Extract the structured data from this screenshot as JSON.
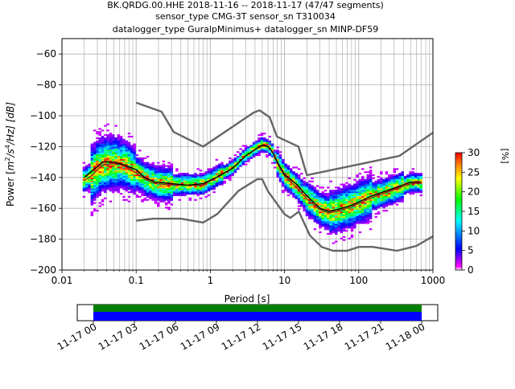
{
  "chart_data": [
    {
      "type": "heatmap",
      "title_lines": [
        "BK.QRDG.00.HHE   2018-11-16 -- 2018-11-17  (47/47 segments)",
        "sensor_type CMG-3T sensor_sn T310034",
        "datalogger_type GuralpMinimus+ datalogger_sn MINP-DF59"
      ],
      "xlabel": "Period [s]",
      "ylabel": "Power [m²/s⁴/Hz] [dB]",
      "ylabel_parts": {
        "pre": "Power [",
        "m": "m",
        "e2": "2",
        "s": "/s",
        "e4": "4",
        "hz": "/Hz] [dB]"
      },
      "xscale": "log",
      "xlim": [
        0.01,
        1000
      ],
      "ylim": [
        -200,
        -50
      ],
      "x_ticks": [
        0.01,
        0.1,
        1,
        10,
        100,
        1000
      ],
      "x_tick_labels": [
        "0.01",
        "0.1",
        "1",
        "10",
        "100",
        "1000"
      ],
      "y_ticks": [
        -60,
        -80,
        -100,
        -120,
        -140,
        -160,
        -180,
        -200
      ],
      "y_tick_labels": [
        "−60",
        "−80",
        "−100",
        "−120",
        "−140",
        "−160",
        "−180",
        "−200"
      ],
      "grid": true,
      "colorbar": {
        "label": "[%]",
        "range": [
          0,
          30
        ],
        "ticks": [
          0,
          5,
          10,
          15,
          20,
          25,
          30
        ],
        "tick_labels": [
          "0",
          "5",
          "10",
          "15",
          "20",
          "25",
          "30"
        ],
        "colors": [
          "#ffffff",
          "#ff00ff",
          "#0000ff",
          "#00ffff",
          "#00ff00",
          "#ffff00",
          "#ff8000",
          "#ff0000"
        ]
      },
      "high_noise_model": [
        [
          0.1,
          -91.5
        ],
        [
          0.22,
          -97.4
        ],
        [
          0.32,
          -110.5
        ],
        [
          0.8,
          -120
        ],
        [
          3.8,
          -98
        ],
        [
          4.6,
          -96.5
        ],
        [
          6.3,
          -101
        ],
        [
          7.9,
          -113.5
        ],
        [
          15.4,
          -120
        ],
        [
          20,
          -138.5
        ],
        [
          354.8,
          -126
        ],
        [
          1000,
          -111
        ]
      ],
      "low_noise_model": [
        [
          0.1,
          -168
        ],
        [
          0.17,
          -166.7
        ],
        [
          0.4,
          -166.7
        ],
        [
          0.8,
          -169.2
        ],
        [
          1.24,
          -163.7
        ],
        [
          2.4,
          -148.6
        ],
        [
          4.3,
          -141.1
        ],
        [
          5,
          -141.1
        ],
        [
          6,
          -149
        ],
        [
          10,
          -163.8
        ],
        [
          12,
          -166.2
        ],
        [
          15.6,
          -162.1
        ],
        [
          21.9,
          -177.5
        ],
        [
          31.6,
          -185
        ],
        [
          45,
          -187.5
        ],
        [
          70,
          -187.5
        ],
        [
          101,
          -185
        ],
        [
          154,
          -185
        ],
        [
          328,
          -187.5
        ],
        [
          600,
          -184.4
        ],
        [
          1000,
          -178.1
        ]
      ],
      "mean_psd": [
        [
          0.02,
          -140
        ],
        [
          0.025,
          -136
        ],
        [
          0.03,
          -133
        ],
        [
          0.035,
          -130
        ],
        [
          0.05,
          -130
        ],
        [
          0.07,
          -132
        ],
        [
          0.1,
          -135
        ],
        [
          0.13,
          -140
        ],
        [
          0.18,
          -143
        ],
        [
          0.3,
          -144
        ],
        [
          0.5,
          -145
        ],
        [
          0.8,
          -144
        ],
        [
          1.2,
          -140
        ],
        [
          2,
          -134
        ],
        [
          3,
          -126
        ],
        [
          4,
          -122
        ],
        [
          5,
          -119
        ],
        [
          6,
          -120
        ],
        [
          7,
          -124
        ],
        [
          8,
          -130
        ],
        [
          10,
          -138
        ],
        [
          15,
          -145
        ],
        [
          20,
          -152
        ],
        [
          30,
          -160
        ],
        [
          40,
          -162
        ],
        [
          50,
          -161
        ],
        [
          80,
          -158
        ],
        [
          150,
          -152
        ],
        [
          300,
          -147
        ],
        [
          500,
          -143
        ],
        [
          700,
          -143
        ]
      ],
      "mode_psd": [
        [
          0.02,
          -142
        ],
        [
          0.025,
          -139
        ],
        [
          0.03,
          -135
        ],
        [
          0.035,
          -132
        ],
        [
          0.05,
          -131
        ],
        [
          0.07,
          -132
        ],
        [
          0.1,
          -137
        ],
        [
          0.13,
          -141
        ],
        [
          0.18,
          -144
        ],
        [
          0.3,
          -145
        ],
        [
          0.5,
          -145
        ],
        [
          0.8,
          -145
        ],
        [
          1.2,
          -140
        ],
        [
          2,
          -134
        ],
        [
          3,
          -126
        ],
        [
          4,
          -122
        ],
        [
          5,
          -119
        ],
        [
          6,
          -120
        ],
        [
          7,
          -124
        ],
        [
          8,
          -131
        ],
        [
          10,
          -139
        ],
        [
          15,
          -147
        ],
        [
          20,
          -154
        ],
        [
          30,
          -161
        ],
        [
          40,
          -163
        ],
        [
          50,
          -162
        ],
        [
          80,
          -159
        ],
        [
          150,
          -153
        ],
        [
          300,
          -148
        ],
        [
          500,
          -144
        ],
        [
          700,
          -144
        ]
      ]
    },
    {
      "type": "bar",
      "description_role": "data coverage timeline",
      "x_tick_labels": [
        "11-17 00",
        "11-17 03",
        "11-17 06",
        "11-17 09",
        "11-17 12",
        "11-17 15",
        "11-17 18",
        "11-17 21",
        "11-18 00"
      ],
      "coverage_start": "2018-11-17 00:00",
      "coverage_end": "2018-11-18 00:00",
      "xlim": [
        "2018-11-16 21:00",
        "2018-11-18 03:00"
      ],
      "bar_colors": {
        "upper": "#008000",
        "lower": "#0000ff"
      }
    }
  ]
}
